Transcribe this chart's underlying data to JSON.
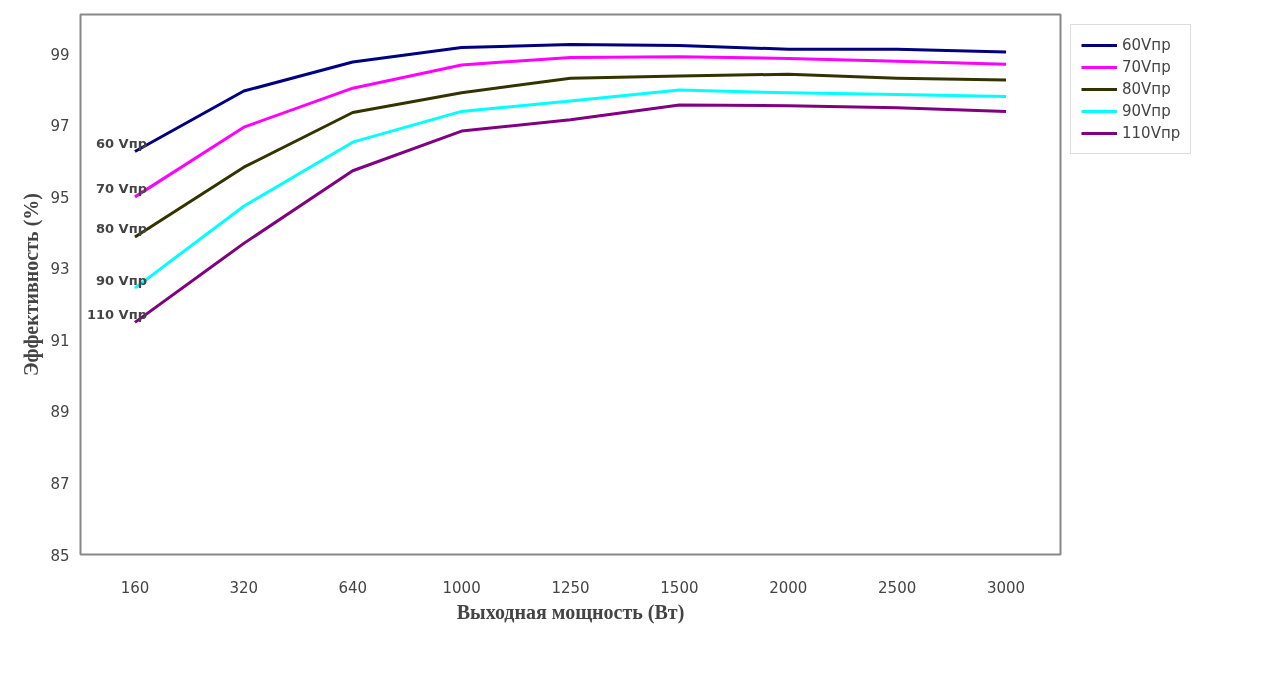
{
  "chart_data": {
    "type": "line",
    "xlabel": "Выходная мощность (Вт)",
    "ylabel": "Эффективность (%)",
    "categories": [
      "160",
      "320",
      "640",
      "1000",
      "1250",
      "1500",
      "2000",
      "2500",
      "3000"
    ],
    "ylim": [
      85,
      100.1
    ],
    "yticks": [
      85,
      87,
      89,
      91,
      93,
      95,
      97,
      99
    ],
    "grid": false,
    "legend": "top right",
    "marker": "none",
    "line_style": "solid",
    "series": [
      {
        "name": "60Vпр",
        "color": "#000080",
        "values": [
          96.27,
          97.96,
          98.77,
          99.18,
          99.26,
          99.23,
          99.13,
          99.13,
          99.05
        ]
      },
      {
        "name": "70Vпр",
        "color": "#ff00ff",
        "values": [
          95.0,
          96.95,
          98.04,
          98.69,
          98.9,
          98.92,
          98.87,
          98.79,
          98.71
        ]
      },
      {
        "name": "80Vпр",
        "color": "#333300",
        "values": [
          93.88,
          95.83,
          97.36,
          97.91,
          98.32,
          98.38,
          98.43,
          98.32,
          98.27
        ]
      },
      {
        "name": "90Vпр",
        "color": "#00ffff",
        "values": [
          92.45,
          94.74,
          96.53,
          97.39,
          97.68,
          97.99,
          97.91,
          97.86,
          97.81
        ]
      },
      {
        "name": "110Vпр",
        "color": "#800080",
        "values": [
          91.49,
          93.7,
          95.73,
          96.84,
          97.16,
          97.57,
          97.55,
          97.49,
          97.39
        ]
      }
    ],
    "annotations": [
      {
        "text": "60 Vпр",
        "x": "160",
        "y": 96.27
      },
      {
        "text": "70 Vпр",
        "x": "160",
        "y": 95.0
      },
      {
        "text": "80 Vпр",
        "x": "160",
        "y": 93.88
      },
      {
        "text": "90 Vпр",
        "x": "160",
        "y": 92.45
      },
      {
        "text": "110 Vпр",
        "x": "160",
        "y": 91.49
      }
    ]
  }
}
